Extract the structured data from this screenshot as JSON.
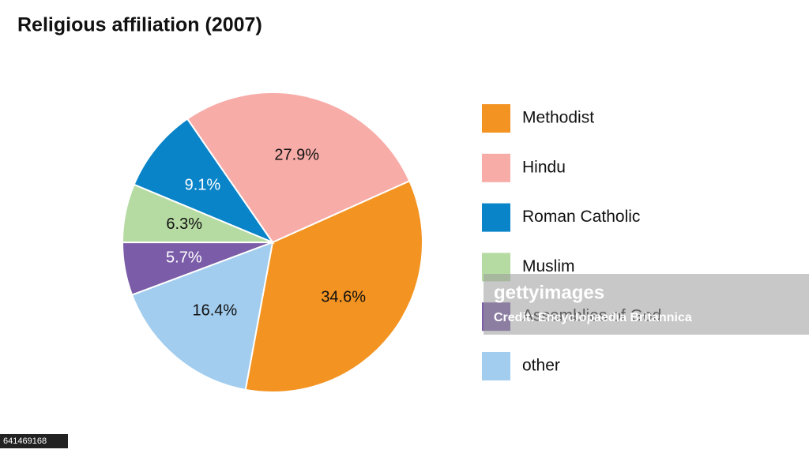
{
  "chart_data": {
    "type": "pie",
    "title": "Religious affiliation (2007)",
    "categories": [
      "Methodist",
      "Hindu",
      "Roman Catholic",
      "Muslim",
      "Assemblies of God",
      "other"
    ],
    "values": [
      34.6,
      27.9,
      9.1,
      6.3,
      5.7,
      16.4
    ],
    "value_labels": [
      "34.6%",
      "27.9%",
      "9.1%",
      "6.3%",
      "5.7%",
      "16.4%"
    ],
    "colors": [
      "#f39322",
      "#f7aca8",
      "#0a84c8",
      "#b5dba2",
      "#7b5ca8",
      "#a2cdee"
    ],
    "legend": "right"
  },
  "watermark": {
    "brand": "gettyimages",
    "credit": "Credit: Encyclopaedia Britannica",
    "id": "641469168"
  }
}
